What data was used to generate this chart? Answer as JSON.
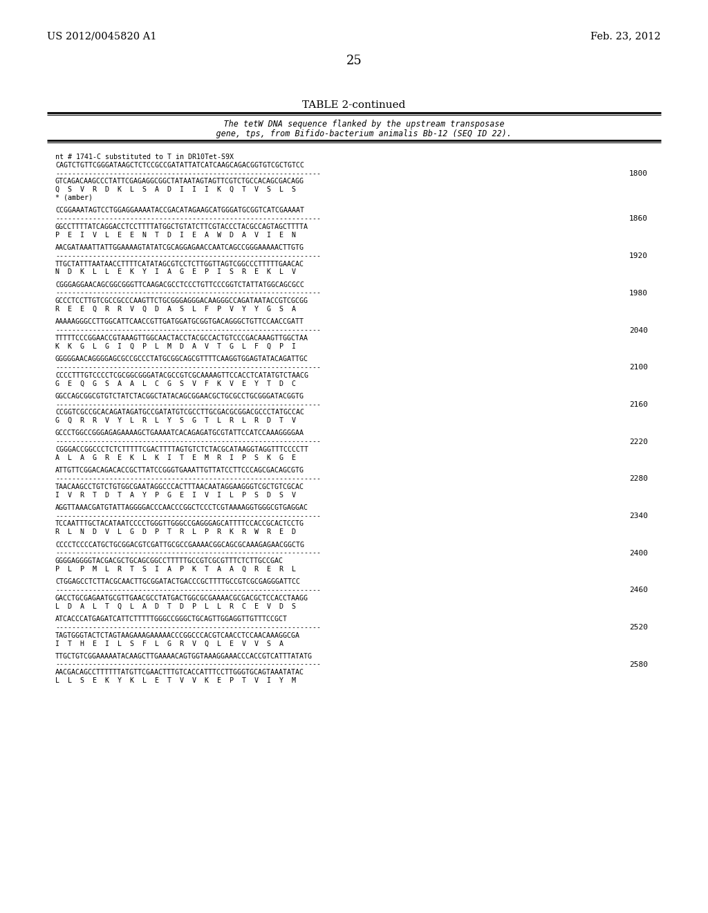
{
  "header_left": "US 2012/0045820 A1",
  "header_right": "Feb. 23, 2012",
  "page_number": "25",
  "table_title": "TABLE 2-continued",
  "table_desc1": "    The tetW DNA sequence flanked by the upstream transposase",
  "table_desc2": "    gene, tps, from Bifido-bacterium animalis Bb-12 (SEQ ID 22).",
  "content_blocks": [
    {
      "note": "nt # 1741-C substituted to T in DR10Tet-S9X",
      "seq1": "CAGTCTGTTCGGGATAAGCTCTCCGCCGATATTATCATCAAGCAGACGGTGTCGCTGTCC",
      "dashes": "----------------------------------------------------------------",
      "seq2": "GTCAGACAAGCCCTATTCGAGAGGCGGCTATAATAGTAGTTCGTCTGCCACAGCGACAGG",
      "aa": "Q  S  V  R  D  K  L  S  A  D  I  I  I  K  Q  T  V  S  L  S",
      "extra": "* (amber)",
      "linenum": 1800
    },
    {
      "note": "",
      "seq1": "CCGGAAATAGTCCTGGAGGAAAATACCGACATAGAAGCATGGGATGCGGTCATCGAAAAT",
      "dashes": "----------------------------------------------------------------",
      "seq2": "GGCCTTTTATCAGGACCTCCTTTTATGGCTGTATCTTCGTACCCTACGCCAGTAGCTTTTA",
      "aa": "P  E  I  V  L  E  E  N  T  D  I  E  A  W  D  A  V  I  E  N",
      "extra": "",
      "linenum": 1860
    },
    {
      "note": "",
      "seq1": "AACGATAAATTATTGGAAAAGTATATCGCAGGAGAACCAATCAGCCGGGAAAAACTTGTG",
      "dashes": "----------------------------------------------------------------",
      "seq2": "TTGCTATTTAATAACCTTTTCATATAGCGTCCTCTTGGTTAGTCGGCCCTTTTTGAACAC",
      "aa": "N  D  K  L  L  E  K  Y  I  A  G  E  P  I  S  R  E  K  L  V",
      "extra": "",
      "linenum": 1920
    },
    {
      "note": "",
      "seq1": "CGGGAGGAACAGCGGCGGGTTCAAGACGCCTCCCTGTTCCCGGTCTATTATGGCAGCGCC",
      "dashes": "----------------------------------------------------------------",
      "seq2": "GCCCTCCTTGTCGCCGCCCAAGTTCTGCGGGAGGGACAAGGGCCAGATAATACCGTCGCGG",
      "aa": "R  E  E  Q  R  R  V  Q  D  A  S  L  F  P  V  Y  Y  G  S  A",
      "extra": "",
      "linenum": 1980
    },
    {
      "note": "",
      "seq1": "AAAAAGGGCCTTGGCATTCAACCGTTGATGGATGCGGTGACAGGGCTGTTCCAACCGATT",
      "dashes": "----------------------------------------------------------------",
      "seq2": "TTTTTCCCGGAACCGTAAAGTTGGCAACTACCTACGCCACTGTCCCGACAAAGTTGGCTAA",
      "aa": "K  K  G  L  G  I  Q  P  L  M  D  A  V  T  G  L  F  Q  P  I",
      "extra": "",
      "linenum": 2040
    },
    {
      "note": "",
      "seq1": "GGGGGAACAGGGGAGCGCCGCCCTATGCGGCAGCGTTTTCAAGGTGGAGTATACAGATTGC",
      "dashes": "----------------------------------------------------------------",
      "seq2": "CCCCTTTGTCCCCTCGCGGCGGGATACGCCGTCGCAAAAGTTCCACCTCATATGTCTAACG",
      "aa": "G  E  Q  G  S  A  A  L  C  G  S  V  F  K  V  E  Y  T  D  C",
      "extra": "",
      "linenum": 2100
    },
    {
      "note": "",
      "seq1": "GGCCAGCGGCGTGTCTATCTACGGCTATACAGCGGAACGCTGCGCCTGCGGGATACGGTG",
      "dashes": "----------------------------------------------------------------",
      "seq2": "CCGGTCGCCGCACAGATAGATGCCGATATGTCGCCTTGCGACGCGGACGCCCTATGCCAC",
      "aa": "G  Q  R  R  V  Y  L  R  L  Y  S  G  T  L  R  L  R  D  T  V",
      "extra": "",
      "linenum": 2160
    },
    {
      "note": "",
      "seq1": "GCCCTGGCCGGGAGAGAAAAGCTGAAAATCACAGAGATGCGTATTCCATCCAAAGGGGAA",
      "dashes": "----------------------------------------------------------------",
      "seq2": "CGGGACCGGCCCTCTCTTTTTCGACTTTTAGTGTCTCTACGCATAAGGTAGGTTTCCCCTT",
      "aa": "A  L  A  G  R  E  K  L  K  I  T  E  M  R  I  P  S  K  G  E",
      "extra": "",
      "linenum": 2220
    },
    {
      "note": "",
      "seq1": "ATTGTTCGGACAGACACCGCTTATCCGGGTGAAATTGTTATCCTTCCCAGCGACAGCGTG",
      "dashes": "----------------------------------------------------------------",
      "seq2": "TAACAAGCCTGTCTGTGGCGAATAGGCCCACTTTAACAATAGGAAGGGTCGCTGTCGCAC",
      "aa": "I  V  R  T  D  T  A  Y  P  G  E  I  V  I  L  P  S  D  S  V",
      "extra": "",
      "linenum": 2280
    },
    {
      "note": "",
      "seq1": "AGGTTAAACGATGTATTAGGGGACCCAACCCGGCTCCCTCGTAAAAGGTGGGCGTGAGGAC",
      "dashes": "----------------------------------------------------------------",
      "seq2": "TCCAATTTGCTACATAATCCCCTGGGTTGGGCCGAGGGAGCATTTTCCACCGCACTCCTG",
      "aa": "R  L  N  D  V  L  G  D  P  T  R  L  P  R  K  R  W  R  E  D",
      "extra": "",
      "linenum": 2340
    },
    {
      "note": "",
      "seq1": "CCCCTCCCCATGCTGCGGACGTCGATTGCGCCGAAAACGGCAGCGCAAAGAGAACGGCTG",
      "dashes": "----------------------------------------------------------------",
      "seq2": "GGGGAGGGGTACGACGCTGCAGCGGCCTTTTTGCCGTCGCGTTTCTCTTGCCGAC",
      "aa": "P  L  P  M  L  R  T  S  I  A  P  K  T  A  A  Q  R  E  R  L",
      "extra": "",
      "linenum": 2400
    },
    {
      "note": "",
      "seq1": "CTGGAGCCTCTTACGCAACTTGCGGATACTGACCCGCTTTTGCCGTCGCGAGGGATTCC",
      "dashes": "----------------------------------------------------------------",
      "seq2": "GACCTGCGAGAATGCGTTGAACGCCTATGACTGGCGCGAAAACGCGACGCTCCACCTAAGG",
      "aa": "L  D  A  L  T  Q  L  A  D  T  D  P  L  L  R  C  E  V  D  S",
      "extra": "",
      "linenum": 2460
    },
    {
      "note": "",
      "seq1": "ATCACCCATGAGATCATTCTTTTTGGGCCGGGCTGCAGTTGGAGGTTGTTTCCGCT",
      "dashes": "----------------------------------------------------------------",
      "seq2": "TAGTGGGTACTCTAGTAAGAAAGAAAAACCCGGCCCACGTCAACCTCCAACAAAGGCGA",
      "aa": "I  T  H  E  I  L  S  F  L  G  R  V  Q  L  E  V  V  S  A",
      "extra": "",
      "linenum": 2520
    },
    {
      "note": "",
      "seq1": "TTGCTGTCGGAAAAATACAAGCTTGAAAACAGTGGTAAAGGAAACCCACCGTCATTTATATG",
      "dashes": "----------------------------------------------------------------",
      "seq2": "AACGACAGCCTTTTTTATGTTCGAACTTTGTCACCATTTCCTTGGGTGCAGTAAATATAC",
      "aa": "L  L  S  E  K  Y  K  L  E  T  V  V  K  E  P  T  V  I  Y  M",
      "extra": "",
      "linenum": 2580
    }
  ],
  "bg_color": "#ffffff",
  "text_color": "#000000"
}
